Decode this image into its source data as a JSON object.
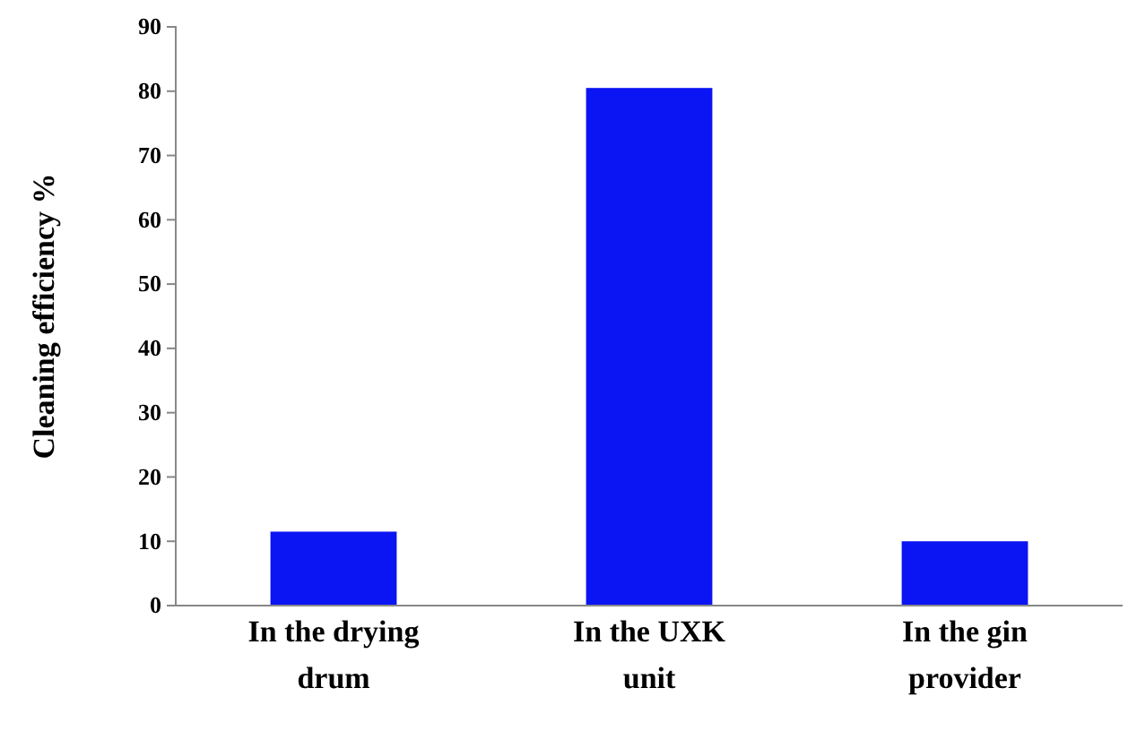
{
  "chart_data": {
    "type": "bar",
    "ylabel": "Cleaning efficiency %",
    "categories": [
      "In the drying drum",
      "In the UXK unit",
      "In the gin provider"
    ],
    "values": [
      11.5,
      80.5,
      10
    ],
    "color": "#0b14f2",
    "ylim": [
      0,
      90
    ],
    "yticks": [
      0,
      10,
      20,
      30,
      40,
      50,
      60,
      70,
      80,
      90
    ]
  }
}
